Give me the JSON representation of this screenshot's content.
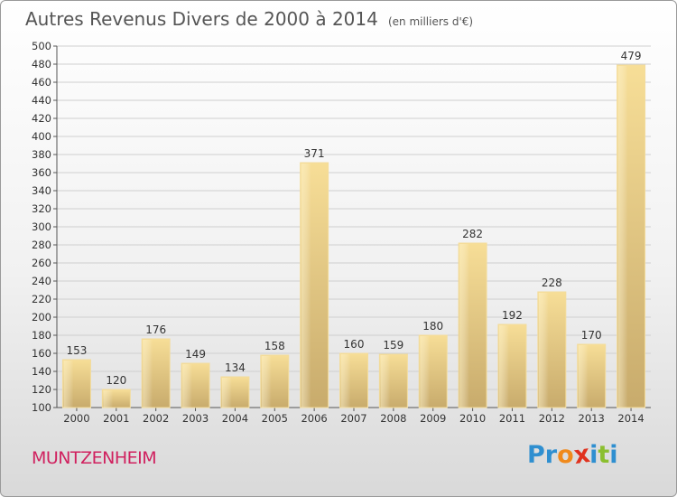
{
  "title": "Autres Revenus Divers de 2000 à 2014",
  "subtitle": "(en milliers d'€)",
  "location": "MUNTZENHEIM",
  "logo": {
    "letters": [
      "P",
      "r",
      "o",
      "x",
      "i",
      "t",
      "i"
    ],
    "colors": [
      "#2f8fd0",
      "#2f8fd0",
      "#f08a1c",
      "#e0321e",
      "#2f8fd0",
      "#8bbf2f",
      "#2f8fd0"
    ]
  },
  "chart_data": {
    "type": "bar",
    "categories": [
      "2000",
      "2001",
      "2002",
      "2003",
      "2004",
      "2005",
      "2006",
      "2007",
      "2008",
      "2009",
      "2010",
      "2011",
      "2012",
      "2013",
      "2014"
    ],
    "values": [
      153,
      120,
      176,
      149,
      134,
      158,
      371,
      160,
      159,
      180,
      282,
      192,
      228,
      170,
      479
    ],
    "title": "Autres Revenus Divers de 2000 à 2014",
    "ylim": [
      100,
      500
    ],
    "yticks": [
      100,
      120,
      140,
      160,
      180,
      200,
      220,
      240,
      260,
      280,
      300,
      320,
      340,
      360,
      380,
      400,
      420,
      440,
      460,
      480,
      500
    ],
    "grid": true,
    "bar_color": "#e8cd85"
  }
}
